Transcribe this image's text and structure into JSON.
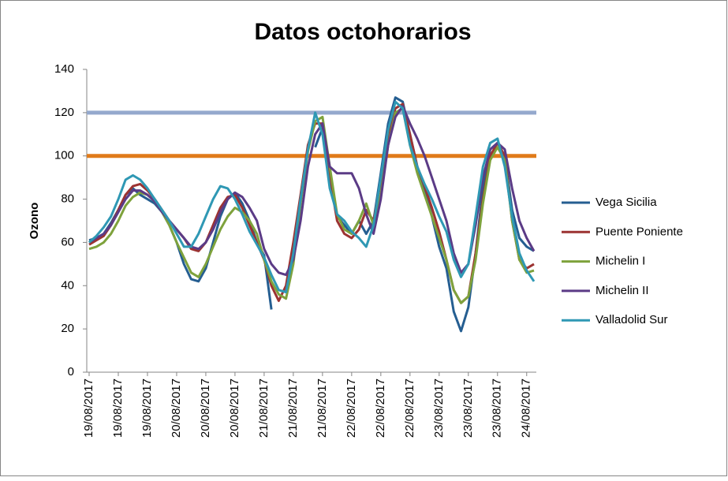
{
  "chart_data": {
    "type": "line",
    "title": "Datos octohorarios",
    "y_label": "Ozono",
    "categories": [
      "19/08/2017",
      null,
      null,
      null,
      "19/08/2017",
      null,
      null,
      null,
      "19/08/2017",
      null,
      null,
      null,
      "20/08/2017",
      null,
      null,
      null,
      "20/08/2017",
      null,
      null,
      null,
      "20/08/2017",
      null,
      null,
      null,
      "21/08/2017",
      null,
      null,
      null,
      "21/08/2017",
      null,
      null,
      null,
      "21/08/2017",
      null,
      null,
      null,
      "22/08/2017",
      null,
      null,
      null,
      "22/08/2017",
      null,
      null,
      null,
      "22/08/2017",
      null,
      null,
      null,
      "23/08/2017",
      null,
      null,
      null,
      "23/08/2017",
      null,
      null,
      null,
      "23/08/2017",
      null,
      null,
      null,
      "24/08/2017",
      null
    ],
    "ylim": [
      0,
      140
    ],
    "yticks": [
      0,
      20,
      40,
      60,
      80,
      100,
      120,
      140
    ],
    "grid": false,
    "legend": "right",
    "reference_lines": [
      {
        "value": 120,
        "color": "#95a9cd"
      },
      {
        "value": 100,
        "color": "#e07b1a"
      }
    ],
    "series": [
      {
        "name": "Vega Sicilia",
        "color": "#255e91",
        "values": [
          61,
          62,
          64,
          69,
          75,
          82,
          85,
          82,
          80,
          78,
          74,
          68,
          60,
          50,
          43,
          42,
          48,
          60,
          72,
          80,
          83,
          78,
          70,
          60,
          54,
          29,
          null,
          null,
          null,
          null,
          null,
          104,
          113,
          90,
          72,
          68,
          64,
          70,
          64,
          70,
          92,
          115,
          127,
          125,
          110,
          95,
          85,
          72,
          58,
          48,
          28,
          19,
          30,
          55,
          85,
          103,
          106,
          100,
          75,
          62,
          58,
          56
        ]
      },
      {
        "name": "Puente Poniente",
        "color": "#9c3332",
        "values": [
          59,
          61,
          63,
          68,
          75,
          82,
          86,
          87,
          84,
          80,
          75,
          70,
          66,
          62,
          57,
          56,
          60,
          68,
          76,
          81,
          82,
          76,
          68,
          60,
          52,
          40,
          33,
          40,
          60,
          82,
          105,
          115,
          115,
          90,
          70,
          64,
          62,
          66,
          75,
          70,
          88,
          110,
          122,
          124,
          110,
          95,
          86,
          76,
          65,
          52,
          38,
          32,
          35,
          55,
          80,
          100,
          106,
          100,
          70,
          52,
          48,
          50
        ]
      },
      {
        "name": "Michelin I",
        "color": "#7ea23c",
        "values": [
          57,
          58,
          60,
          64,
          70,
          77,
          81,
          83,
          82,
          79,
          74,
          68,
          60,
          53,
          46,
          44,
          50,
          58,
          66,
          72,
          76,
          74,
          70,
          64,
          52,
          42,
          36,
          34,
          50,
          78,
          102,
          116,
          118,
          95,
          73,
          66,
          64,
          70,
          78,
          68,
          82,
          105,
          120,
          122,
          105,
          92,
          82,
          72,
          62,
          52,
          38,
          32,
          35,
          52,
          78,
          98,
          104,
          98,
          70,
          52,
          46,
          47
        ]
      },
      {
        "name": "Michelin II",
        "color": "#5b3b86",
        "values": [
          60,
          62,
          64,
          68,
          74,
          80,
          84,
          84,
          82,
          79,
          74,
          70,
          66,
          62,
          58,
          57,
          60,
          66,
          74,
          80,
          83,
          81,
          76,
          70,
          57,
          50,
          46,
          45,
          52,
          70,
          95,
          110,
          115,
          95,
          92,
          92,
          92,
          85,
          73,
          64,
          80,
          105,
          118,
          123,
          115,
          108,
          100,
          90,
          80,
          70,
          55,
          46,
          50,
          68,
          90,
          103,
          106,
          103,
          85,
          70,
          62,
          56
        ]
      },
      {
        "name": "Valladolid Sur",
        "color": "#2f98b4",
        "values": [
          60,
          63,
          67,
          72,
          80,
          89,
          91,
          89,
          85,
          80,
          75,
          70,
          64,
          58,
          58,
          64,
          72,
          80,
          86,
          85,
          80,
          73,
          65,
          59,
          53,
          45,
          38,
          37,
          55,
          80,
          103,
          120,
          110,
          85,
          73,
          70,
          65,
          62,
          58,
          68,
          90,
          112,
          125,
          122,
          105,
          95,
          87,
          80,
          72,
          65,
          52,
          44,
          50,
          72,
          95,
          106,
          108,
          95,
          72,
          55,
          47,
          42
        ]
      }
    ]
  }
}
